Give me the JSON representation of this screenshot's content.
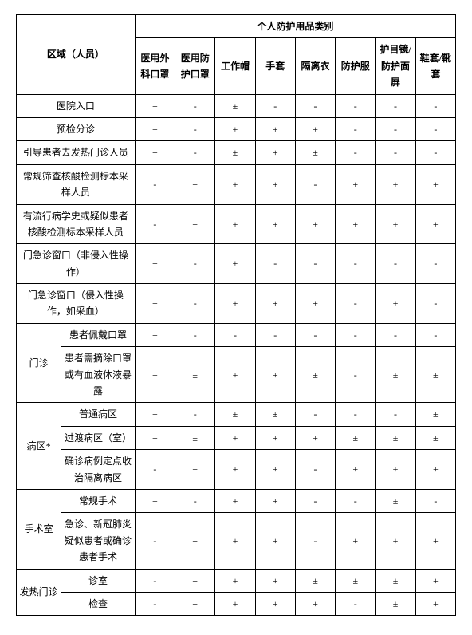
{
  "headers": {
    "area": "区域（人员）",
    "category": "个人防护用品类别",
    "ppe": [
      "医用外科口罩",
      "医用防护口罩",
      "工作帽",
      "手套",
      "隔离衣",
      "防护服",
      "护目镜/防护面屏",
      "鞋套/靴套"
    ]
  },
  "rows": [
    {
      "area": "医院入口",
      "v": [
        "+",
        "-",
        "±",
        "-",
        "-",
        "-",
        "-",
        "-"
      ]
    },
    {
      "area": "预检分诊",
      "v": [
        "+",
        "-",
        "±",
        "+",
        "±",
        "-",
        "-",
        "-"
      ]
    },
    {
      "area": "引导患者去发热门诊人员",
      "v": [
        "+",
        "-",
        "±",
        "+",
        "±",
        "-",
        "-",
        "-"
      ]
    },
    {
      "area": "常规筛查核酸检测标本采样人员",
      "v": [
        "-",
        "+",
        "+",
        "+",
        "-",
        "+",
        "+",
        "+"
      ]
    },
    {
      "area": "有流行病学史或疑似患者核酸检测标本采样人员",
      "v": [
        "-",
        "+",
        "+",
        "+",
        "±",
        "+",
        "+",
        "±"
      ]
    },
    {
      "area": "门急诊窗口（非侵入性操作）",
      "v": [
        "+",
        "-",
        "±",
        "-",
        "-",
        "-",
        "-",
        "-"
      ]
    },
    {
      "area": "门急诊窗口（侵入性操作，如采血）",
      "v": [
        "+",
        "-",
        "+",
        "+",
        "±",
        "-",
        "±",
        "-"
      ]
    }
  ],
  "groups": [
    {
      "name": "门诊",
      "rows": [
        {
          "sub": "患者佩戴口罩",
          "v": [
            "+",
            "-",
            "-",
            "-",
            "-",
            "-",
            "-",
            "-"
          ]
        },
        {
          "sub": "患者需摘除口罩或有血液体液暴露",
          "v": [
            "+",
            "±",
            "+",
            "+",
            "±",
            "-",
            "±",
            "±"
          ]
        }
      ]
    },
    {
      "name": "病区*",
      "rows": [
        {
          "sub": "普通病区",
          "v": [
            "+",
            "-",
            "±",
            "±",
            "-",
            "-",
            "-",
            "±"
          ]
        },
        {
          "sub": "过渡病区（室）",
          "v": [
            "+",
            "±",
            "+",
            "+",
            "+",
            "±",
            "±",
            "±"
          ]
        },
        {
          "sub": "确诊病例定点收治隔离病区",
          "v": [
            "-",
            "+",
            "+",
            "+",
            "-",
            "+",
            "+",
            "+"
          ]
        }
      ]
    },
    {
      "name": "手术室",
      "rows": [
        {
          "sub": "常规手术",
          "v": [
            "+",
            "-",
            "+",
            "+",
            "-",
            "-",
            "±",
            "-"
          ]
        },
        {
          "sub": "急诊、新冠肺炎疑似患者或确诊患者手术",
          "v": [
            "-",
            "+",
            "+",
            "+",
            "-",
            "+",
            "+",
            "+"
          ]
        }
      ]
    },
    {
      "name": "发热门诊",
      "rows": [
        {
          "sub": "诊室",
          "v": [
            "-",
            "+",
            "+",
            "+",
            "±",
            "±",
            "±",
            "+"
          ]
        },
        {
          "sub": "检查",
          "v": [
            "-",
            "+",
            "+",
            "+",
            "+",
            "-",
            "±",
            "+"
          ]
        }
      ]
    }
  ]
}
